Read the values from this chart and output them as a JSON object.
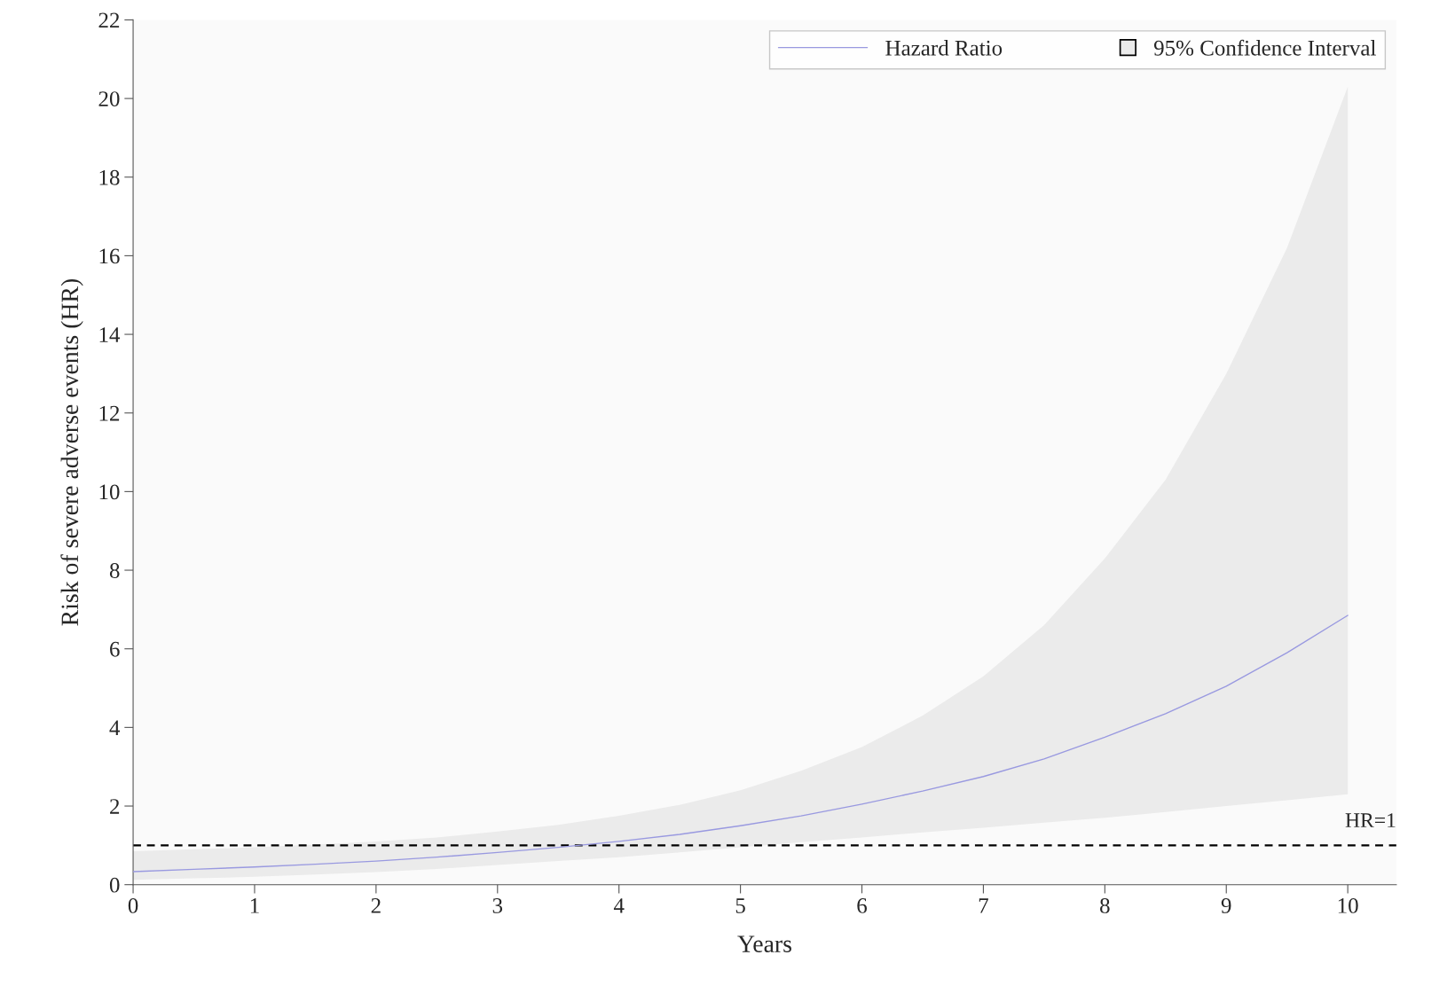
{
  "chart_data": {
    "type": "line",
    "xlabel": "Years",
    "ylabel": "Risk of severe adverse events (HR)",
    "x": [
      0,
      0.5,
      1,
      1.5,
      2,
      2.5,
      3,
      3.5,
      4,
      4.5,
      5,
      5.5,
      6,
      6.5,
      7,
      7.5,
      8,
      8.5,
      9,
      9.5,
      10
    ],
    "series": [
      {
        "name": "Hazard Ratio",
        "color": "#9999e0",
        "values": [
          0.33,
          0.39,
          0.45,
          0.52,
          0.6,
          0.7,
          0.82,
          0.95,
          1.1,
          1.28,
          1.5,
          1.75,
          2.05,
          2.38,
          2.75,
          3.2,
          3.75,
          4.35,
          5.05,
          5.9,
          6.85
        ],
        "lower": [
          0.12,
          0.16,
          0.2,
          0.26,
          0.32,
          0.4,
          0.5,
          0.6,
          0.7,
          0.82,
          0.95,
          1.08,
          1.2,
          1.33,
          1.45,
          1.58,
          1.7,
          1.85,
          2.0,
          2.15,
          2.3
        ],
        "upper": [
          0.85,
          0.9,
          0.95,
          1.02,
          1.1,
          1.2,
          1.35,
          1.52,
          1.75,
          2.03,
          2.4,
          2.9,
          3.5,
          4.3,
          5.3,
          6.6,
          8.3,
          10.3,
          13.0,
          16.2,
          20.3
        ]
      },
      {
        "name": "95% Confidence Interval",
        "type": "area",
        "color": "#ebebeb",
        "values": [
          null,
          null,
          null,
          null,
          null,
          null,
          null,
          null,
          null,
          null,
          null,
          null,
          null,
          null,
          null,
          null,
          null,
          null,
          null,
          null,
          null
        ]
      }
    ],
    "xlim": [
      0,
      10.4
    ],
    "xticks": [
      0,
      1,
      2,
      3,
      4,
      5,
      6,
      7,
      8,
      9,
      10
    ],
    "ylim": [
      0,
      22
    ],
    "yticks": [
      0,
      2,
      4,
      6,
      8,
      10,
      12,
      14,
      16,
      18,
      20,
      22
    ],
    "ref_lines": [
      {
        "axis": "y",
        "value": 1,
        "label": "HR=1",
        "color": "#000000",
        "line_style": "dashed"
      }
    ],
    "legend": "top right",
    "grid": false
  }
}
